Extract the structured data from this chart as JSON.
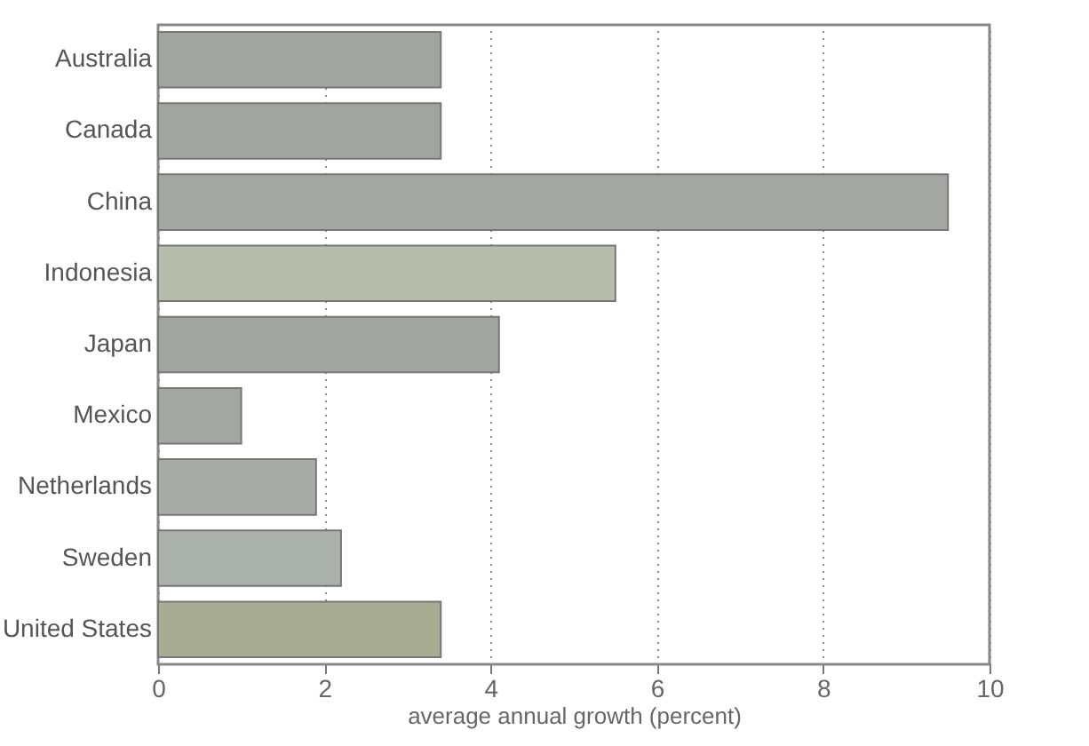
{
  "chart_data": {
    "type": "bar",
    "orientation": "horizontal",
    "xlabel": "average annual growth (percent)",
    "categories": [
      "Australia",
      "Canada",
      "China",
      "Indonesia",
      "Japan",
      "Mexico",
      "Netherlands",
      "Sweden",
      "United States"
    ],
    "values": [
      3.4,
      3.4,
      9.5,
      5.5,
      4.1,
      1.0,
      1.9,
      2.2,
      3.4
    ],
    "colors": [
      "#a2a4a2",
      "#a2a4a2",
      "#a4a6a4",
      "#b8bcaa",
      "#a2a4a2",
      "#a4a6a4",
      "#a8aca8",
      "#aab0aa",
      "#a8ac92"
    ],
    "xlim": [
      0,
      10
    ],
    "xticks": [
      0,
      2,
      4,
      6,
      8,
      10
    ],
    "grid": "x",
    "line_style": "dotted"
  }
}
